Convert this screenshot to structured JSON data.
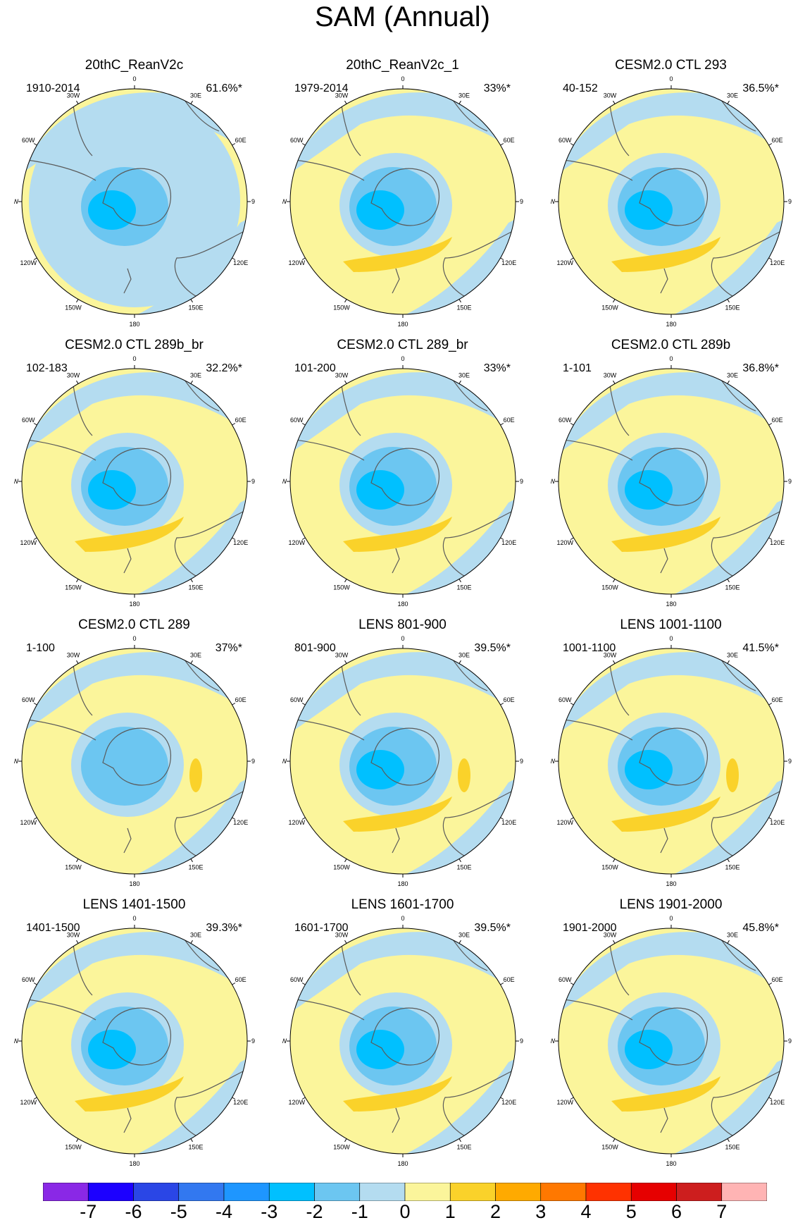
{
  "title": "SAM (Annual)",
  "colors": {
    "land_outline": "#5a5a5a",
    "neg3": "#00c0ff",
    "neg2": "#6cc6f1",
    "neg1": "#b4dcf0",
    "zero": "#fbf59b",
    "pos1": "#fad22a"
  },
  "meridian_labels": [
    "0",
    "30E",
    "60E",
    "90E",
    "120E",
    "150E",
    "180",
    "150W",
    "120W",
    "90W",
    "60W",
    "30W"
  ],
  "panels": [
    {
      "title": "20thC_ReanV2c",
      "period": "1910-2014",
      "pct": "61.6%*",
      "core": 3,
      "pos_band": false,
      "pos_blob": false
    },
    {
      "title": "20thC_ReanV2c_1",
      "period": "1979-2014",
      "pct": "33%*",
      "core": 3,
      "pos_band": true,
      "pos_blob": false
    },
    {
      "title": "CESM2.0 CTL 293",
      "period": "40-152",
      "pct": "36.5%*",
      "core": 3,
      "pos_band": true,
      "pos_blob": false
    },
    {
      "title": "CESM2.0 CTL 289b_br",
      "period": "102-183",
      "pct": "32.2%*",
      "core": 3,
      "pos_band": true,
      "pos_blob": false
    },
    {
      "title": "CESM2.0 CTL 289_br",
      "period": "101-200",
      "pct": "33%*",
      "core": 3,
      "pos_band": true,
      "pos_blob": false
    },
    {
      "title": "CESM2.0 CTL 289b",
      "period": "1-101",
      "pct": "36.8%*",
      "core": 3,
      "pos_band": true,
      "pos_blob": false
    },
    {
      "title": "CESM2.0 CTL 289",
      "period": "1-100",
      "pct": "37%*",
      "core": 2,
      "pos_band": false,
      "pos_blob": true
    },
    {
      "title": "LENS 801-900",
      "period": "801-900",
      "pct": "39.5%*",
      "core": 3,
      "pos_band": true,
      "pos_blob": true
    },
    {
      "title": "LENS 1001-1100",
      "period": "1001-1100",
      "pct": "41.5%*",
      "core": 3,
      "pos_band": true,
      "pos_blob": true
    },
    {
      "title": "LENS 1401-1500",
      "period": "1401-1500",
      "pct": "39.3%*",
      "core": 3,
      "pos_band": true,
      "pos_blob": false
    },
    {
      "title": "LENS 1601-1700",
      "period": "1601-1700",
      "pct": "39.5%*",
      "core": 3,
      "pos_band": true,
      "pos_blob": false
    },
    {
      "title": "LENS 1901-2000",
      "period": "1901-2000",
      "pct": "45.8%*",
      "core": 3,
      "pos_band": true,
      "pos_blob": false
    }
  ],
  "colorbar": {
    "labels": [
      "-7",
      "-6",
      "-5",
      "-4",
      "-3",
      "-2",
      "-1",
      "0",
      "1",
      "2",
      "3",
      "4",
      "5",
      "6",
      "7"
    ],
    "colors": [
      "#8a28e6",
      "#1c00ff",
      "#2a46e6",
      "#3278f0",
      "#1e96ff",
      "#00c0ff",
      "#6cc6f1",
      "#b4dcf0",
      "#fbf59b",
      "#fad22a",
      "#ffaa00",
      "#ff7800",
      "#ff3200",
      "#e60000",
      "#cd1e1e",
      "#ffb4b4"
    ]
  }
}
